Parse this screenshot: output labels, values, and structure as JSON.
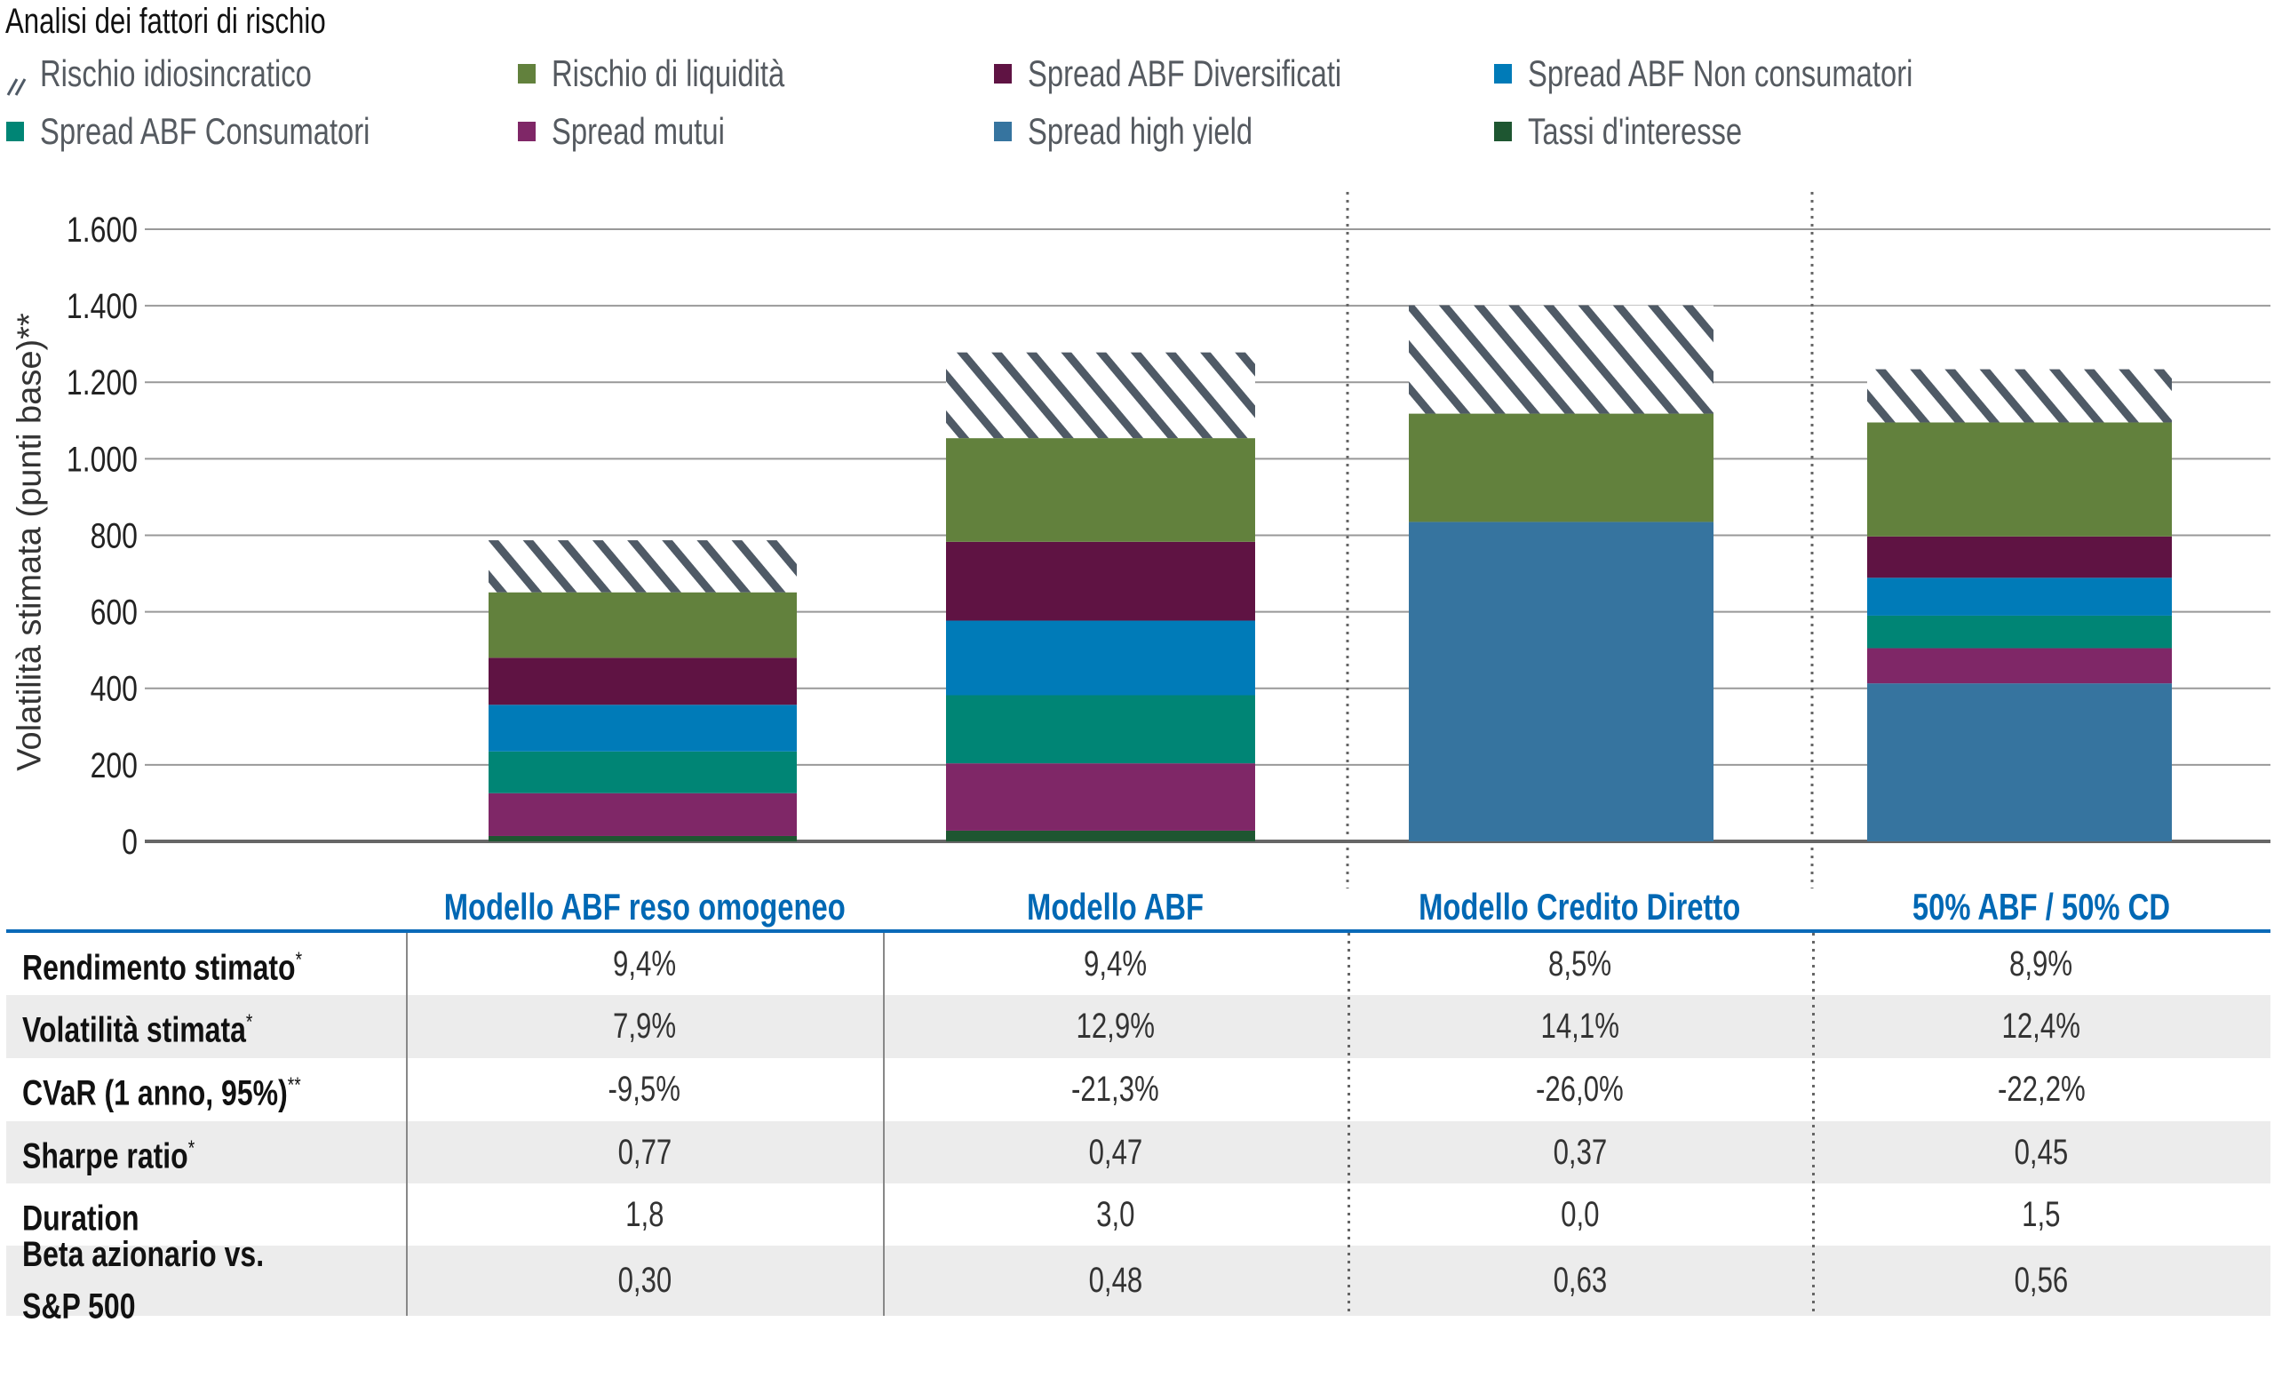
{
  "chart_data": {
    "type": "bar",
    "stacked": true,
    "title": "Analisi dei fattori di rischio",
    "ylabel": "Volatilità stimata (punti base)**",
    "ylim": [
      0,
      1600
    ],
    "yticks": [
      0,
      200,
      400,
      600,
      800,
      1000,
      1200,
      1400,
      1600
    ],
    "ytick_labels": [
      "0",
      "200",
      "400",
      "600",
      "800",
      "1.000",
      "1.200",
      "1.400",
      "1.600"
    ],
    "grid": true,
    "legend_position": "top",
    "categories": [
      "Modello ABF reso omogeneo",
      "Modello ABF",
      "Modello Credito Diretto",
      "50% ABF / 50% CD"
    ],
    "series": [
      {
        "name": "Tassi d'interesse",
        "color": "#1e5631",
        "values": [
          14,
          28,
          0,
          0
        ]
      },
      {
        "name": "Spread high yield",
        "color": "#36749f",
        "values": [
          0,
          0,
          835,
          413
        ]
      },
      {
        "name": "Spread mutui",
        "color": "#7f2767",
        "values": [
          112,
          176,
          0,
          92
        ]
      },
      {
        "name": "Spread ABF Consumatori",
        "color": "#008575",
        "values": [
          109,
          178,
          0,
          85
        ]
      },
      {
        "name": "Spread ABF Non consumatori",
        "color": "#007bb8",
        "values": [
          122,
          195,
          0,
          99
        ]
      },
      {
        "name": "Spread ABF Diversificati",
        "color": "#5f1343",
        "values": [
          123,
          206,
          0,
          108
        ]
      },
      {
        "name": "Rischio di liquidità",
        "color": "#62813d",
        "values": [
          171,
          271,
          283,
          298
        ]
      },
      {
        "name": "Rischio idiosincratico",
        "color": "#4f5a66",
        "pattern": "hatch",
        "values": [
          136,
          224,
          283,
          139
        ]
      }
    ]
  },
  "legend": [
    {
      "label": "Rischio idiosincratico",
      "color": "#4f5a66",
      "icon": "hatch"
    },
    {
      "label": "Rischio di liquidità",
      "color": "#62813d"
    },
    {
      "label": "Spread ABF Diversificati",
      "color": "#5f1343"
    },
    {
      "label": "Spread ABF Non consumatori",
      "color": "#007bb8"
    },
    {
      "label": "Spread ABF Consumatori",
      "color": "#008575"
    },
    {
      "label": "Spread mutui",
      "color": "#7f2767"
    },
    {
      "label": "Spread high yield",
      "color": "#36749f"
    },
    {
      "label": "Tassi d'interesse",
      "color": "#1e5631"
    }
  ],
  "table": {
    "headers": [
      "Modello ABF reso omogeneo",
      "Modello ABF",
      "Modello Credito Diretto",
      "50% ABF / 50% CD"
    ],
    "rows": [
      {
        "label": "Rendimento stimato",
        "mark": "*",
        "values": [
          "9,4%",
          "9,4%",
          "8,5%",
          "8,9%"
        ]
      },
      {
        "label": "Volatilità stimata",
        "mark": "*",
        "values": [
          "7,9%",
          "12,9%",
          "14,1%",
          "12,4%"
        ]
      },
      {
        "label": "CVaR (1 anno, 95%)",
        "mark": "**",
        "values": [
          "-9,5%",
          "-21,3%",
          "-26,0%",
          "-22,2%"
        ]
      },
      {
        "label": "Sharpe ratio",
        "mark": "*",
        "values": [
          "0,77",
          "0,47",
          "0,37",
          "0,45"
        ]
      },
      {
        "label": "Duration",
        "mark": "",
        "values": [
          "1,8",
          "3,0",
          "0,0",
          "1,5"
        ]
      },
      {
        "label": "Beta azionario vs. S&P 500",
        "mark": "",
        "values": [
          "0,30",
          "0,48",
          "0,63",
          "0,56"
        ]
      }
    ]
  }
}
